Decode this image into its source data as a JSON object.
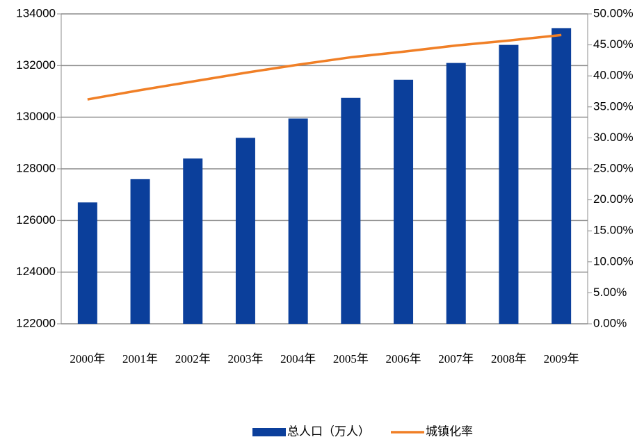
{
  "chart_data": {
    "type": "bar",
    "categories": [
      "2000年",
      "2001年",
      "2002年",
      "2003年",
      "2004年",
      "2005年",
      "2006年",
      "2007年",
      "2008年",
      "2009年"
    ],
    "series": [
      {
        "name": "总人口（万人）",
        "color": "#0b3f9b",
        "type": "bar",
        "values": [
          126700,
          127600,
          128400,
          129200,
          129950,
          130750,
          131450,
          132100,
          132800,
          133450
        ]
      },
      {
        "name": "城镇化率",
        "color": "#f07f26",
        "type": "line",
        "axis": "y2",
        "values": [
          36.2,
          37.7,
          39.1,
          40.5,
          41.8,
          43.0,
          43.9,
          44.9,
          45.7,
          46.6
        ]
      }
    ],
    "ylim": [
      122000,
      134000
    ],
    "yticks": [
      122000,
      124000,
      126000,
      128000,
      130000,
      132000,
      134000
    ],
    "y2lim": [
      0,
      50
    ],
    "y2ticks": [
      {
        "value": 0,
        "label": "0.00%"
      },
      {
        "value": 5,
        "label": "5.00%"
      },
      {
        "value": 10,
        "label": "10.00%"
      },
      {
        "value": 15,
        "label": "15.00%"
      },
      {
        "value": 20,
        "label": "20.00%"
      },
      {
        "value": 25,
        "label": "25.00%"
      },
      {
        "value": 30,
        "label": "30.00%"
      },
      {
        "value": 35,
        "label": "35.00%"
      },
      {
        "value": 40,
        "label": "40.00%"
      },
      {
        "value": 45,
        "label": "45.00%"
      },
      {
        "value": 50,
        "label": "50.00%"
      }
    ],
    "grid": true,
    "legend": "bottom"
  }
}
